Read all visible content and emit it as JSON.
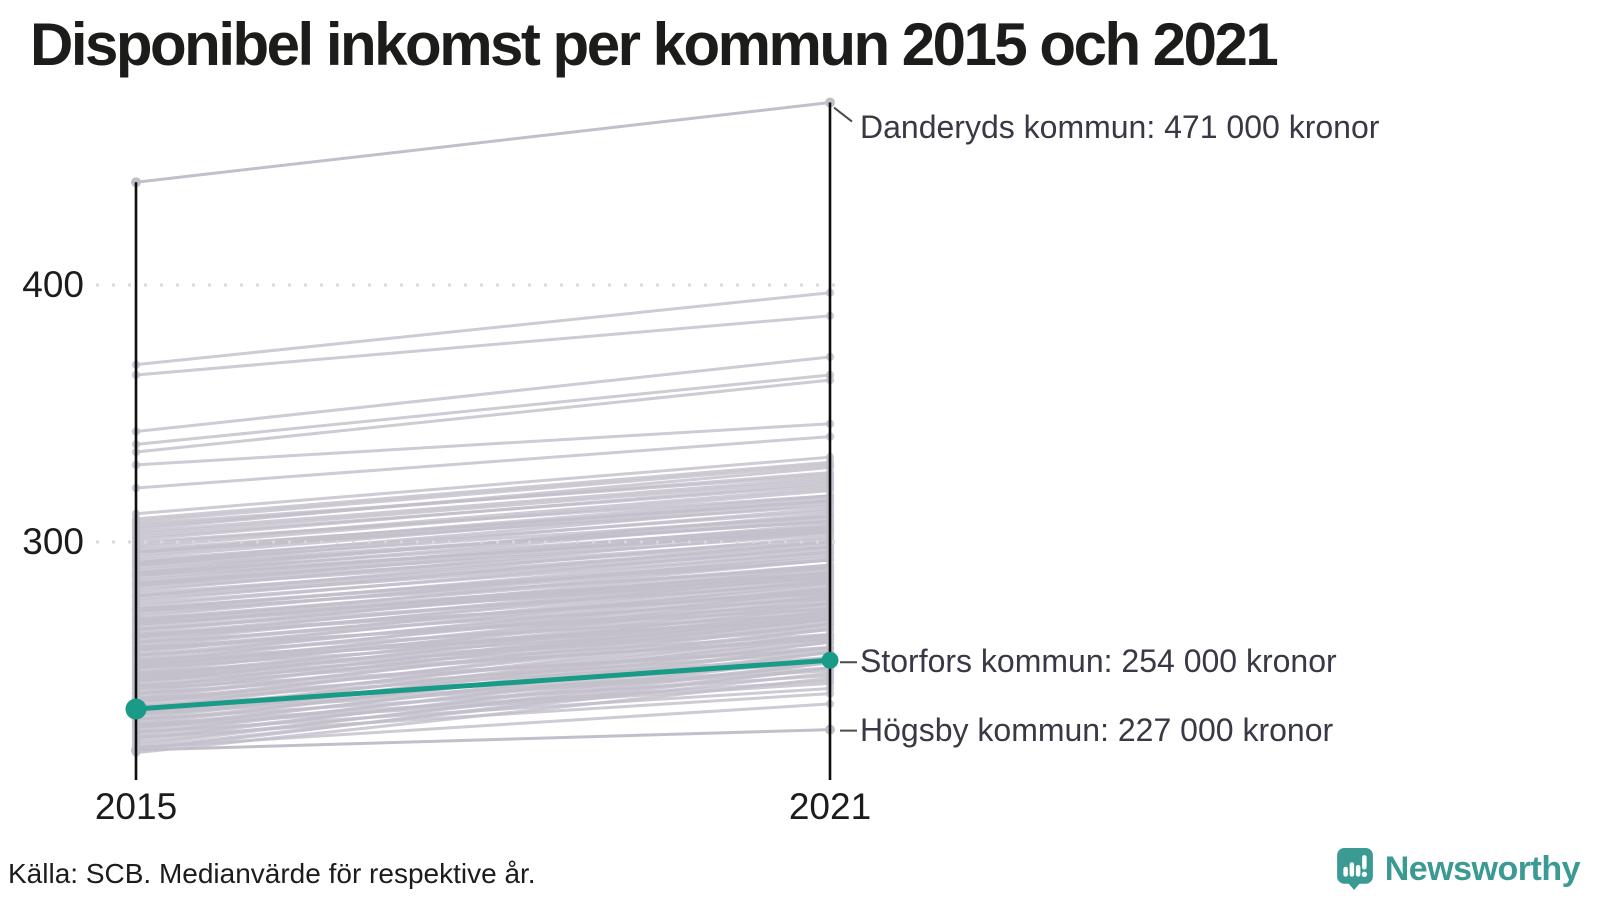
{
  "title": "Disponibel inkomst per kommun 2015 och 2021",
  "footer": {
    "source": "Källa: SCB. Medianvärde för respektive år.",
    "brand": "Newsworthy"
  },
  "chart_data": {
    "type": "line",
    "subtype": "slopegraph",
    "title": "Disponibel inkomst per kommun 2015 och 2021",
    "x_labels": [
      "2015",
      "2021"
    ],
    "y_ticks": [
      400,
      300
    ],
    "grid": "dotted",
    "annotated_series": [
      {
        "name": "Danderyds kommun",
        "values": [
          440,
          471
        ],
        "label": "Danderyds kommun: 471 000 kronor",
        "highlighted": false,
        "label_offset_y": 25
      },
      {
        "name": "Storfors kommun",
        "values": [
          235,
          254
        ],
        "label": "Storfors kommun: 254 000 kronor",
        "highlighted": true,
        "label_offset_y": 2
      },
      {
        "name": "Högsby kommun",
        "values": [
          219,
          227
        ],
        "label": "Högsby kommun: 227 000 kronor",
        "highlighted": false,
        "label_offset_y": 1
      }
    ],
    "background_series": [
      [
        369,
        397
      ],
      [
        365,
        388
      ],
      [
        343,
        372
      ],
      [
        338,
        365
      ],
      [
        335,
        363
      ],
      [
        330,
        346
      ],
      [
        321,
        341
      ],
      [
        311,
        333
      ],
      [
        308,
        330
      ],
      [
        306,
        327
      ],
      [
        304,
        325
      ],
      [
        302,
        322
      ],
      [
        300,
        318
      ],
      [
        298,
        320
      ],
      [
        297,
        316
      ],
      [
        296,
        314
      ],
      [
        294,
        316
      ],
      [
        293,
        312
      ],
      [
        292,
        310
      ],
      [
        291,
        313
      ],
      [
        290,
        308
      ],
      [
        289,
        310
      ],
      [
        288,
        306
      ],
      [
        287,
        309
      ],
      [
        286,
        305
      ],
      [
        285,
        307
      ],
      [
        284,
        303
      ],
      [
        283,
        305
      ],
      [
        282,
        300
      ],
      [
        281,
        304
      ],
      [
        280,
        299
      ],
      [
        279,
        302
      ],
      [
        278,
        297
      ],
      [
        277,
        300
      ],
      [
        276,
        296
      ],
      [
        275,
        298
      ],
      [
        274,
        294
      ],
      [
        273,
        296
      ],
      [
        272,
        293
      ],
      [
        271,
        295
      ],
      [
        270,
        291
      ],
      [
        269,
        293
      ],
      [
        268,
        289
      ],
      [
        267,
        291
      ],
      [
        266,
        288
      ],
      [
        265,
        290
      ],
      [
        264,
        286
      ],
      [
        263,
        288
      ],
      [
        262,
        285
      ],
      [
        261,
        287
      ],
      [
        260,
        283
      ],
      [
        259,
        285
      ],
      [
        258,
        282
      ],
      [
        257,
        284
      ],
      [
        256,
        280
      ],
      [
        255,
        282
      ],
      [
        254,
        279
      ],
      [
        253,
        281
      ],
      [
        252,
        277
      ],
      [
        251,
        279
      ],
      [
        250,
        276
      ],
      [
        249,
        278
      ],
      [
        248,
        274
      ],
      [
        247,
        276
      ],
      [
        246,
        273
      ],
      [
        245,
        275
      ],
      [
        244,
        271
      ],
      [
        243,
        273
      ],
      [
        242,
        270
      ],
      [
        241,
        272
      ],
      [
        240,
        268
      ],
      [
        239,
        270
      ],
      [
        238,
        266
      ],
      [
        237,
        268
      ],
      [
        236,
        264
      ],
      [
        235,
        266
      ],
      [
        234,
        262
      ],
      [
        233,
        264
      ],
      [
        232,
        261
      ],
      [
        231,
        263
      ],
      [
        230,
        259
      ],
      [
        229,
        261
      ],
      [
        228,
        257
      ],
      [
        227,
        259
      ],
      [
        226,
        255
      ],
      [
        225,
        257
      ],
      [
        224,
        253
      ],
      [
        223,
        255
      ],
      [
        222,
        251
      ],
      [
        221,
        253
      ],
      [
        220,
        249
      ],
      [
        219,
        251
      ],
      [
        218,
        247
      ],
      [
        263,
        281
      ],
      [
        258,
        276
      ],
      [
        252,
        271
      ],
      [
        247,
        264
      ],
      [
        241,
        259
      ],
      [
        236,
        253
      ],
      [
        231,
        248
      ],
      [
        266,
        284
      ],
      [
        270,
        288
      ],
      [
        274,
        293
      ],
      [
        279,
        298
      ],
      [
        283,
        301
      ],
      [
        287,
        304
      ],
      [
        291,
        308
      ],
      [
        251,
        268
      ],
      [
        246,
        262
      ],
      [
        256,
        272
      ],
      [
        261,
        278
      ],
      [
        243,
        258
      ],
      [
        238,
        255
      ],
      [
        233,
        250
      ],
      [
        228,
        245
      ],
      [
        224,
        241
      ],
      [
        220,
        237
      ],
      [
        226,
        243
      ],
      [
        248,
        266
      ],
      [
        253,
        269
      ],
      [
        268,
        286
      ],
      [
        244,
        263
      ],
      [
        259,
        274
      ],
      [
        264,
        280
      ],
      [
        269,
        287
      ],
      [
        273,
        290
      ],
      [
        234,
        251
      ],
      [
        229,
        246
      ],
      [
        239,
        257
      ],
      [
        249,
        267
      ],
      [
        254,
        270
      ],
      [
        284,
        306
      ],
      [
        288,
        311
      ],
      [
        292,
        315
      ],
      [
        296,
        318
      ],
      [
        301,
        323
      ],
      [
        305,
        329
      ],
      [
        309,
        331
      ],
      [
        299,
        321
      ],
      [
        307,
        326
      ],
      [
        295,
        317
      ],
      [
        303,
        324
      ]
    ],
    "colors": {
      "highlight": "#1a9b87",
      "background_line": "#c2bfcb",
      "grid": "#d9d9d9",
      "axis": "#0d0d0d",
      "annotation_text": "#3a3844",
      "leader": "#4a4a4a",
      "brand_teal": "#3b9a93"
    }
  }
}
